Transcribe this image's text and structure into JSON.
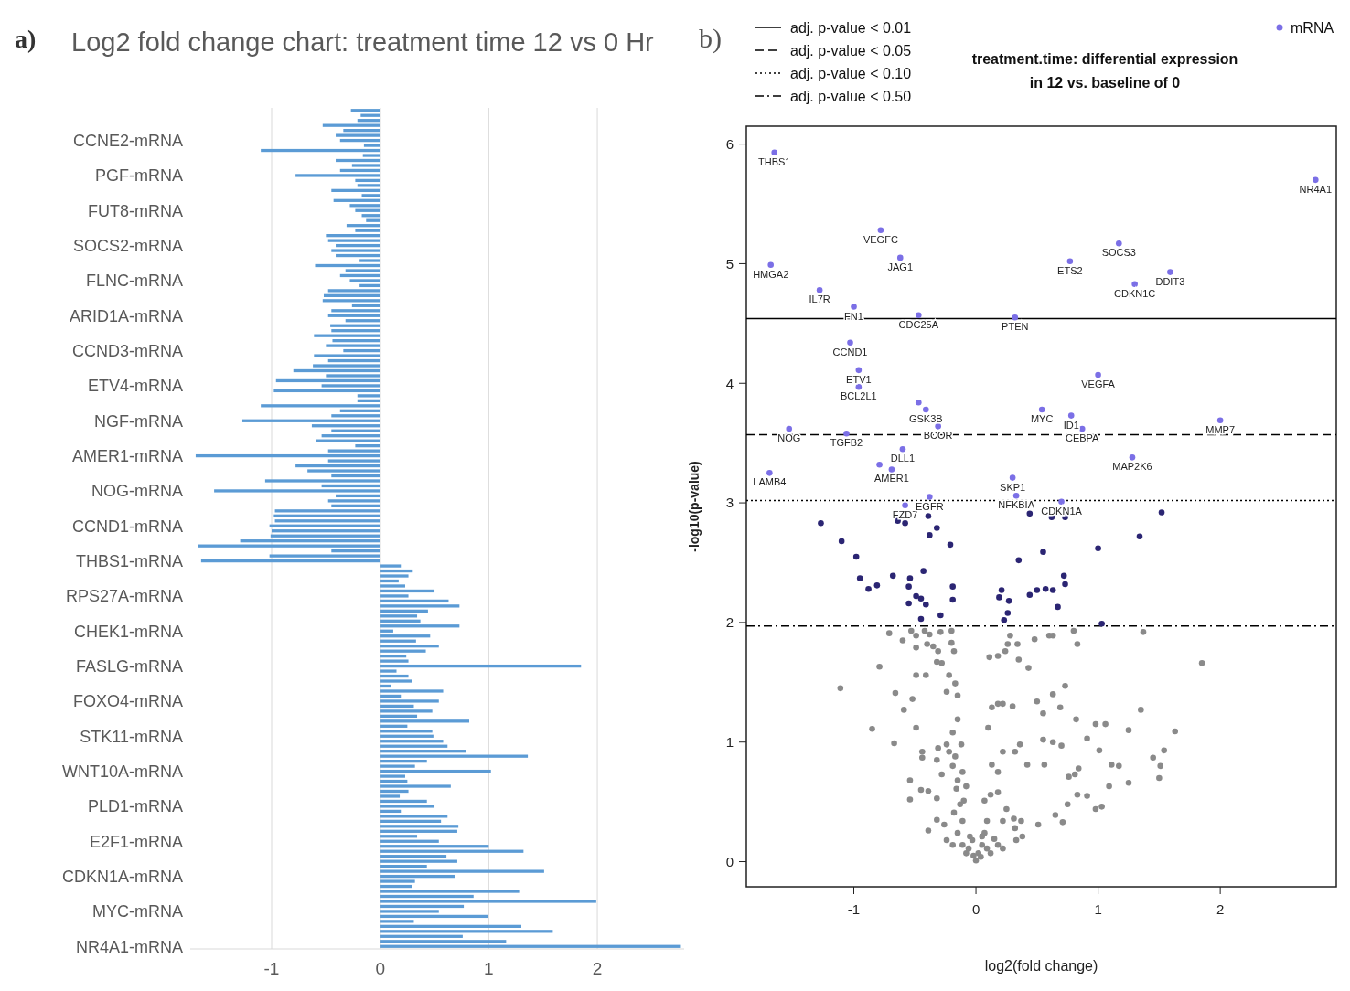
{
  "chart_data": [
    {
      "type": "bar",
      "orientation": "horizontal",
      "title": "Log2 fold change chart: treatment time 12 vs 0 Hr",
      "annotations": [
        "a)"
      ],
      "categories": [
        null,
        null,
        null,
        null,
        null,
        null,
        "CCNE2-mRNA",
        null,
        null,
        null,
        null,
        null,
        null,
        "PGF-mRNA",
        null,
        null,
        null,
        null,
        null,
        null,
        "FUT8-mRNA",
        null,
        null,
        null,
        null,
        null,
        null,
        "SOCS2-mRNA",
        null,
        null,
        null,
        null,
        null,
        null,
        "FLNC-mRNA",
        null,
        null,
        null,
        null,
        null,
        null,
        "ARID1A-mRNA",
        null,
        null,
        null,
        null,
        null,
        null,
        "CCND3-mRNA",
        null,
        null,
        null,
        null,
        null,
        null,
        "ETV4-mRNA",
        null,
        null,
        null,
        null,
        null,
        null,
        "NGF-mRNA",
        null,
        null,
        null,
        null,
        null,
        null,
        "AMER1-mRNA",
        null,
        null,
        null,
        null,
        null,
        null,
        "NOG-mRNA",
        null,
        null,
        null,
        null,
        null,
        null,
        "CCND1-mRNA",
        null,
        null,
        null,
        null,
        null,
        null,
        "THBS1-mRNA",
        null,
        null,
        null,
        null,
        null,
        null,
        "RPS27A-mRNA",
        null,
        null,
        null,
        null,
        null,
        null,
        "CHEK1-mRNA",
        null,
        null,
        null,
        null,
        null,
        null,
        "FASLG-mRNA",
        null,
        null,
        null,
        null,
        null,
        null,
        "FOXO4-mRNA",
        null,
        null,
        null,
        null,
        null,
        null,
        "STK11-mRNA",
        null,
        null,
        null,
        null,
        null,
        null,
        "WNT10A-mRNA",
        null,
        null,
        null,
        null,
        null,
        null,
        "PLD1-mRNA",
        null,
        null,
        null,
        null,
        null,
        null,
        "E2F1-mRNA",
        null,
        null,
        null,
        null,
        null,
        null,
        "CDKN1A-mRNA",
        null,
        null,
        null,
        null,
        null,
        null,
        "MYC-mRNA",
        null,
        null,
        null,
        null,
        null,
        null,
        "NR4A1-mRNA"
      ],
      "values": [
        -0.27,
        -0.18,
        -0.21,
        -0.53,
        -0.34,
        -0.41,
        -0.37,
        -0.15,
        -1.1,
        -0.16,
        -0.41,
        -0.26,
        -0.37,
        -0.78,
        -0.23,
        -0.21,
        -0.45,
        -0.17,
        -0.43,
        -0.28,
        -0.23,
        -0.17,
        -0.13,
        -0.31,
        -0.23,
        -0.5,
        -0.48,
        -0.41,
        -0.45,
        -0.41,
        -0.19,
        -0.6,
        -0.32,
        -0.37,
        -0.28,
        -0.19,
        -0.48,
        -0.52,
        -0.53,
        -0.26,
        -0.45,
        -0.48,
        -0.32,
        -0.46,
        -0.45,
        -0.61,
        -0.44,
        -0.5,
        -0.34,
        -0.61,
        -0.48,
        -0.62,
        -0.8,
        -0.5,
        -0.96,
        -0.54,
        -0.98,
        -0.21,
        -0.21,
        -1.1,
        -0.37,
        -0.45,
        -1.27,
        -0.63,
        -0.45,
        -0.54,
        -0.59,
        -0.23,
        -0.48,
        -1.7,
        -0.48,
        -0.78,
        -0.67,
        -0.45,
        -1.06,
        -0.54,
        -1.53,
        -0.41,
        -0.48,
        -0.45,
        -0.97,
        -0.98,
        -0.97,
        -1.02,
        -1.0,
        -1.01,
        -1.29,
        -1.68,
        -0.45,
        -1.02,
        -1.65,
        0.19,
        0.3,
        0.26,
        0.17,
        0.23,
        0.5,
        0.26,
        0.63,
        0.73,
        0.44,
        0.34,
        0.37,
        0.73,
        0.12,
        0.46,
        0.33,
        0.54,
        0.42,
        0.24,
        0.26,
        1.85,
        0.15,
        0.26,
        0.29,
        0.1,
        0.58,
        0.19,
        0.54,
        0.31,
        0.48,
        0.34,
        0.82,
        0.25,
        0.48,
        0.49,
        0.58,
        0.62,
        0.79,
        1.36,
        0.43,
        0.32,
        1.02,
        0.23,
        0.25,
        0.65,
        0.26,
        0.18,
        0.43,
        0.5,
        0.19,
        0.62,
        0.56,
        0.72,
        0.71,
        0.34,
        0.54,
        1.0,
        1.32,
        0.61,
        0.71,
        0.43,
        1.51,
        0.69,
        0.32,
        0.29,
        1.28,
        0.86,
        1.99,
        0.77,
        0.54,
        0.99,
        0.31,
        1.3,
        1.59,
        0.76,
        1.16,
        2.77
      ],
      "color": "#5b9bd5",
      "xlim": [
        -1.75,
        2.8
      ],
      "xticks": [
        -1,
        0,
        1,
        2
      ],
      "grid": "x"
    },
    {
      "type": "scatter",
      "title": "treatment.time: differential expression in 12 vs. baseline of 0",
      "xlabel": "log2(fold change)",
      "ylabel": "-log10(p-value)",
      "xlim": [
        -1.88,
        2.95
      ],
      "xticks": [
        -1,
        0,
        1,
        2
      ],
      "ylim": [
        -0.21,
        6.15
      ],
      "yticks": [
        0,
        1,
        2,
        3,
        4,
        5,
        6
      ],
      "grid": false,
      "legend": "top right",
      "marker": "circle",
      "ref_lines": [
        {
          "axis": "y",
          "value": 4.54,
          "label": "adj. p-value < 0.01",
          "line_style": "solid",
          "color": "#000000"
        },
        {
          "axis": "y",
          "value": 3.57,
          "label": "adj. p-value < 0.05",
          "line_style": "dashed",
          "color": "#000000"
        },
        {
          "axis": "y",
          "value": 3.02,
          "label": "adj. p-value < 0.10",
          "line_style": "dotted",
          "color": "#000000"
        },
        {
          "axis": "y",
          "value": 1.97,
          "label": "adj. p-value < 0.50",
          "line_style": "dashdot",
          "color": "#000000"
        }
      ],
      "series": [
        {
          "color": "#8a8a8a",
          "x": [
            -0.71,
            -0.6,
            -0.53,
            -0.49,
            -0.42,
            -0.38,
            -0.29,
            -0.2,
            -0.49,
            -0.4,
            -0.35,
            -0.2,
            -0.18,
            -1.11,
            -0.79,
            -0.66,
            -0.59,
            -0.52,
            -0.49,
            -0.41,
            -0.31,
            -0.32,
            -0.28,
            -0.22,
            -0.17,
            -0.49,
            -0.85,
            -0.67,
            -0.44,
            -0.44,
            -0.32,
            -0.31,
            -0.24,
            -0.22,
            -0.17,
            -0.12,
            -0.54,
            -0.54,
            -0.45,
            -0.39,
            -0.32,
            -0.28,
            -0.19,
            -0.15,
            -0.11,
            -0.08,
            -0.39,
            -0.32,
            -0.26,
            -0.24,
            -0.19,
            -0.18,
            -0.15,
            -0.11,
            -0.1,
            -0.08,
            -0.05,
            -0.02,
            0.0,
            0.02,
            0.05,
            0.07,
            0.09,
            0.12,
            0.15,
            0.18,
            0.22,
            0.07,
            0.12,
            0.18,
            0.25,
            0.31,
            0.37,
            0.13,
            0.18,
            0.22,
            0.32,
            0.36,
            0.42,
            0.1,
            0.13,
            0.18,
            0.22,
            0.3,
            0.11,
            0.18,
            0.24,
            0.26,
            0.34,
            0.28,
            0.35,
            0.43,
            0.48,
            0.5,
            0.55,
            0.6,
            0.63,
            0.55,
            0.56,
            0.63,
            0.69,
            0.73,
            0.63,
            0.7,
            0.8,
            0.83,
            0.82,
            0.91,
            1.01,
            0.98,
            1.06,
            0.84,
            0.83,
            0.91,
            0.98,
            1.03,
            1.09,
            1.11,
            1.17,
            1.25,
            1.25,
            1.35,
            1.37,
            1.45,
            1.51,
            1.54,
            1.63,
            1.5,
            1.85,
            0.65,
            0.71,
            0.51,
            0.38,
            0.32,
            0.33,
            0.22,
            0.81,
            0.75,
            0.76,
            -0.11,
            -0.06,
            -0.03,
            0.04,
            0.09,
            0.05,
            -0.13,
            -0.16,
            -0.19,
            -0.15,
            -0.24,
            -0.15
          ],
          "values": [
            1.91,
            1.85,
            1.93,
            1.89,
            1.93,
            1.9,
            1.92,
            1.93,
            1.79,
            1.82,
            1.8,
            1.83,
            1.76,
            1.45,
            1.63,
            1.41,
            1.27,
            1.36,
            1.56,
            1.56,
            1.76,
            1.67,
            1.66,
            1.56,
            1.49,
            1.12,
            1.11,
            0.99,
            0.92,
            0.87,
            0.85,
            0.95,
            0.98,
            0.92,
            0.88,
            0.98,
            0.68,
            0.52,
            0.6,
            0.59,
            0.53,
            0.73,
            0.8,
            0.68,
            0.75,
            0.63,
            0.26,
            0.35,
            0.31,
            0.18,
            0.14,
            0.41,
            0.24,
            0.34,
            0.51,
            0.07,
            0.21,
            0.05,
            0.01,
            0.07,
            0.14,
            0.24,
            0.34,
            0.07,
            0.19,
            0.14,
            0.11,
            0.51,
            0.56,
            0.58,
            0.44,
            0.36,
            0.34,
            0.81,
            0.75,
            0.92,
            0.92,
            0.98,
            0.81,
            1.12,
            1.29,
            1.32,
            1.32,
            1.3,
            1.71,
            1.72,
            1.76,
            1.82,
            1.82,
            1.89,
            1.69,
            1.62,
            1.86,
            1.34,
            1.24,
            1.89,
            1.89,
            1.02,
            0.81,
            1.4,
            1.29,
            1.47,
            1.0,
            0.97,
            1.93,
            1.82,
            1.19,
            1.03,
            0.93,
            1.15,
            1.15,
            0.78,
            0.56,
            0.55,
            0.44,
            0.46,
            0.63,
            0.81,
            0.8,
            1.1,
            0.66,
            1.27,
            1.92,
            0.87,
            0.8,
            0.93,
            1.09,
            0.7,
            1.66,
            0.39,
            0.33,
            0.31,
            0.21,
            0.28,
            0.18,
            0.34,
            0.73,
            0.48,
            0.71,
            0.14,
            0.11,
            0.18,
            0.04,
            0.11,
            0.21,
            0.48,
            0.61,
            1.08,
            1.19,
            1.42,
            1.39
          ]
        },
        {
          "color": "#2b2573",
          "x": [
            -1.27,
            -1.1,
            -0.98,
            -0.95,
            -0.88,
            -0.81,
            -0.68,
            -0.54,
            -0.55,
            -0.55,
            -0.49,
            -0.45,
            -0.41,
            -0.45,
            -0.43,
            -0.38,
            -0.32,
            -0.29,
            -0.21,
            -0.19,
            -0.19,
            -0.39,
            -0.64,
            -0.58,
            0.19,
            0.21,
            0.27,
            0.26,
            0.23,
            0.35,
            0.44,
            0.44,
            0.5,
            0.55,
            0.57,
            0.62,
            0.63,
            0.67,
            0.72,
            0.73,
            null,
            0.73,
            1.0,
            1.03,
            1.34,
            1.52
          ],
          "values": [
            2.83,
            2.68,
            2.55,
            2.37,
            2.28,
            2.31,
            2.39,
            2.37,
            2.3,
            2.16,
            2.22,
            2.2,
            2.15,
            2.03,
            2.43,
            2.73,
            2.79,
            2.06,
            2.65,
            2.3,
            2.19,
            2.89,
            2.85,
            2.83,
            2.21,
            2.27,
            2.18,
            2.08,
            2.02,
            2.52,
            2.23,
            2.91,
            2.27,
            2.59,
            2.28,
            2.88,
            2.27,
            2.13,
            2.39,
            2.32,
            null,
            2.88,
            2.62,
            1.99,
            2.72,
            2.92
          ]
        },
        {
          "name": "mRNA",
          "color": "#7b6fe6",
          "x": [
            -1.65,
            2.78,
            -0.78,
            -1.68,
            -0.62,
            0.77,
            1.17,
            1.3,
            1.59,
            -1.28,
            -1.0,
            -0.47,
            0.32,
            -1.03,
            -0.96,
            -0.96,
            -0.47,
            -0.41,
            -0.31,
            -1.53,
            -1.06,
            0.54,
            0.78,
            0.87,
            1.0,
            2.0,
            -0.6,
            1.28,
            -1.69,
            -0.79,
            -0.69,
            0.3,
            0.33,
            0.7,
            -0.58,
            -0.38
          ],
          "values": [
            5.93,
            5.7,
            5.28,
            4.99,
            5.05,
            5.02,
            5.17,
            4.83,
            4.93,
            4.78,
            4.64,
            4.57,
            4.55,
            4.34,
            4.11,
            3.97,
            3.84,
            3.78,
            3.64,
            3.62,
            3.58,
            3.78,
            3.73,
            3.62,
            4.07,
            3.69,
            3.45,
            3.38,
            3.25,
            3.32,
            3.28,
            3.21,
            3.06,
            3.01,
            2.98,
            3.05
          ]
        }
      ],
      "annotations": [
        "b)",
        {
          "text": "THBS1",
          "x": -1.65,
          "y": 5.93
        },
        {
          "text": "NR4A1",
          "x": 2.78,
          "y": 5.7
        },
        {
          "text": "VEGFC",
          "x": -0.78,
          "y": 5.28
        },
        {
          "text": "HMGA2",
          "x": -1.68,
          "y": 4.99
        },
        {
          "text": "JAG1",
          "x": -0.62,
          "y": 5.05
        },
        {
          "text": "ETS2",
          "x": 0.77,
          "y": 5.02
        },
        {
          "text": "SOCS3",
          "x": 1.17,
          "y": 5.17
        },
        {
          "text": "CDKN1C",
          "x": 1.3,
          "y": 4.83
        },
        {
          "text": "DDIT3",
          "x": 1.59,
          "y": 4.93
        },
        {
          "text": "IL7R",
          "x": -1.28,
          "y": 4.78
        },
        {
          "text": "FN1",
          "x": -1.0,
          "y": 4.64
        },
        {
          "text": "CDC25A",
          "x": -0.47,
          "y": 4.57
        },
        {
          "text": "PTEN",
          "x": 0.32,
          "y": 4.55
        },
        {
          "text": "CCND1",
          "x": -1.03,
          "y": 4.34
        },
        {
          "text": "ETV1",
          "x": -0.96,
          "y": 4.11
        },
        {
          "text": "BCL2L1",
          "x": -0.96,
          "y": 3.97
        },
        {
          "text": "GSK3B",
          "x": -0.41,
          "y": 3.78
        },
        {
          "text": "BCOR",
          "x": -0.31,
          "y": 3.64
        },
        {
          "text": "NOG",
          "x": -1.53,
          "y": 3.62
        },
        {
          "text": "TGFB2",
          "x": -1.06,
          "y": 3.58
        },
        {
          "text": "MYC",
          "x": 0.54,
          "y": 3.78
        },
        {
          "text": "ID1",
          "x": 0.78,
          "y": 3.73
        },
        {
          "text": "CEBPA",
          "x": 0.87,
          "y": 3.62
        },
        {
          "text": "VEGFA",
          "x": 1.0,
          "y": 4.07
        },
        {
          "text": "MMP7",
          "x": 2.0,
          "y": 3.69
        },
        {
          "text": "DLL1",
          "x": -0.6,
          "y": 3.45
        },
        {
          "text": "MAP2K6",
          "x": 1.28,
          "y": 3.38
        },
        {
          "text": "LAMB4",
          "x": -1.69,
          "y": 3.25
        },
        {
          "text": "AMER1",
          "x": -0.69,
          "y": 3.28
        },
        {
          "text": "SKP1",
          "x": 0.3,
          "y": 3.21
        },
        {
          "text": "NFKBIA",
          "x": 0.33,
          "y": 3.06
        },
        {
          "text": "CDKN1A",
          "x": 0.7,
          "y": 3.01
        },
        {
          "text": "FZD7",
          "x": -0.58,
          "y": 2.98
        },
        {
          "text": "EGFR",
          "x": -0.38,
          "y": 3.05
        }
      ]
    }
  ]
}
